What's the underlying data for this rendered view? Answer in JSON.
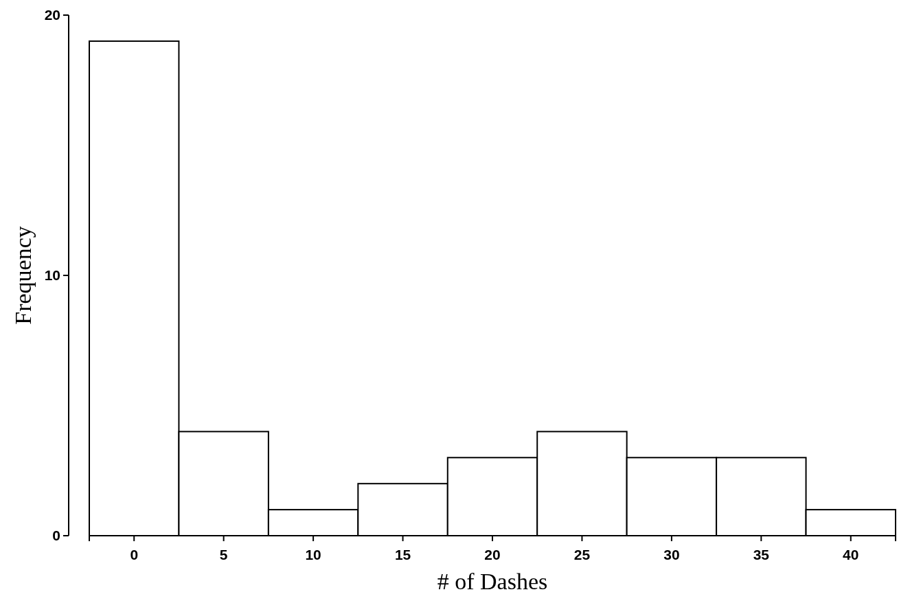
{
  "chart_data": {
    "type": "histogram",
    "xlabel": "# of Dashes",
    "ylabel": "Frequency",
    "bins": [
      -2.5,
      2.5,
      7.5,
      12.5,
      17.5,
      22.5,
      27.5,
      32.5,
      37.5,
      42.5
    ],
    "values": [
      19,
      4,
      1,
      2,
      3,
      4,
      3,
      3,
      1
    ],
    "color": "#ffffff",
    "xlim": [
      -2.5,
      42.5
    ],
    "xticks": [
      0,
      5,
      10,
      15,
      20,
      25,
      30,
      35,
      40
    ],
    "ylim": [
      0,
      20
    ],
    "yticks": [
      0,
      10,
      20
    ],
    "grid": false
  }
}
